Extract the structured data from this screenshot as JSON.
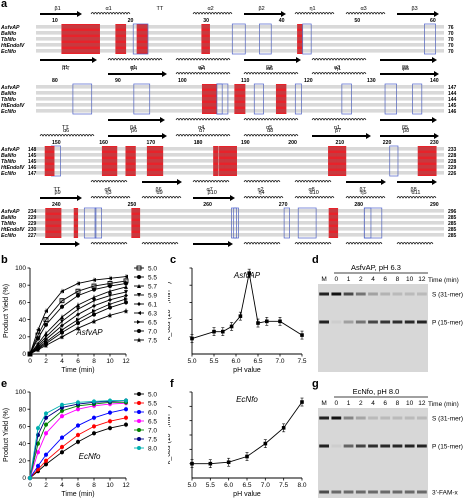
{
  "panel_labels": [
    "a",
    "b",
    "c",
    "d",
    "e",
    "f",
    "g"
  ],
  "alignment": {
    "species": [
      "AsfvAP",
      "BaNfo",
      "TbNfo",
      "HtEndoIV",
      "EcNfo"
    ],
    "blocks": [
      {
        "top_ss": [
          "β1",
          "α1",
          "TT",
          "α2",
          "β2",
          "η1",
          "α3",
          "β3"
        ],
        "positions": [
          "10",
          "20",
          "30",
          "40",
          "50",
          "60"
        ],
        "end_numbers": [
          "76",
          "70",
          "70",
          "70",
          "70"
        ],
        "bottom_ss": [
          "β1",
          "α1",
          "α2",
          "β2",
          "α3",
          "β3"
        ]
      },
      {
        "top_ss": [
          "TT",
          "β4",
          "α4",
          "α5",
          "η1",
          "β5"
        ],
        "positions": [
          "80",
          "90",
          "100",
          "110",
          "120",
          "130",
          "140"
        ],
        "end_numbers": [
          "147",
          "144",
          "144",
          "145",
          "146"
        ],
        "bottom_ss": [
          "TT",
          "β4",
          "α4",
          "α5",
          "η1",
          "β5"
        ]
      },
      {
        "top_ss": [
          "α6",
          "β6",
          "α7",
          "α8",
          "β7",
          "β8"
        ],
        "positions": [
          "150",
          "160",
          "170",
          "180",
          "190",
          "200",
          "210",
          "220",
          "230"
        ],
        "start_numbers": [
          "148",
          "145",
          "145",
          "146",
          "147"
        ],
        "end_numbers": [
          "233",
          "228",
          "228",
          "229",
          "226"
        ],
        "bottom_ss": [
          "TT",
          "α6",
          "β6",
          "α7",
          "η2",
          "α8",
          "β7",
          "β8"
        ]
      },
      {
        "top_ss": [
          "β9",
          "η3",
          "α9",
          "β10",
          "η4",
          "α10",
          "η5",
          "α11"
        ],
        "positions": [
          "240",
          "250",
          "260",
          "270",
          "280",
          "290"
        ],
        "start_numbers": [
          "234",
          "229",
          "229",
          "230",
          "227"
        ],
        "end_numbers": [
          "296",
          "285",
          "285",
          "285",
          "285"
        ],
        "bottom_ss": [
          "β9",
          "η3",
          "α9",
          "β10",
          "η4",
          "α10",
          "η5",
          "α11"
        ]
      }
    ]
  },
  "panel_b": {
    "title": "AsfvAP",
    "chart_data": {
      "type": "scatter",
      "xlabel": "Time (min)",
      "ylabel": "Product Yield (%)",
      "xlim": [
        0,
        12
      ],
      "ylim": [
        0,
        100
      ],
      "xticks": [
        "0",
        "2",
        "4",
        "6",
        "8",
        "10",
        "12"
      ],
      "yticks": [
        "0",
        "20",
        "40",
        "60",
        "80",
        "100"
      ],
      "legend_position": "right",
      "series": [
        {
          "name": "5.0",
          "color": "#000000",
          "marker": "square",
          "values": [
            [
              0,
              0
            ],
            [
              1,
              22
            ],
            [
              2,
              40
            ],
            [
              4,
              62
            ],
            [
              6,
              73
            ],
            [
              8,
              79
            ],
            [
              10,
              82
            ],
            [
              12,
              85
            ]
          ]
        },
        {
          "name": "5.5",
          "color": "#000000",
          "marker": "circle",
          "values": [
            [
              0,
              0
            ],
            [
              1,
              18
            ],
            [
              2,
              34
            ],
            [
              4,
              55
            ],
            [
              6,
              68
            ],
            [
              8,
              75
            ],
            [
              10,
              79
            ],
            [
              12,
              82
            ]
          ]
        },
        {
          "name": "5.7",
          "color": "#000000",
          "marker": "triangle",
          "values": [
            [
              0,
              0
            ],
            [
              1,
              12
            ],
            [
              2,
              24
            ],
            [
              4,
              43
            ],
            [
              6,
              57
            ],
            [
              8,
              66
            ],
            [
              10,
              73
            ],
            [
              12,
              78
            ]
          ]
        },
        {
          "name": "5.9",
          "color": "#000000",
          "marker": "triangle-down",
          "values": [
            [
              0,
              0
            ],
            [
              1,
              10
            ],
            [
              2,
              20
            ],
            [
              4,
              38
            ],
            [
              6,
              52
            ],
            [
              8,
              62
            ],
            [
              10,
              68
            ],
            [
              12,
              72
            ]
          ]
        },
        {
          "name": "6.1",
          "color": "#000000",
          "marker": "diamond",
          "values": [
            [
              0,
              0
            ],
            [
              1,
              8
            ],
            [
              2,
              17
            ],
            [
              4,
              33
            ],
            [
              6,
              46
            ],
            [
              8,
              56
            ],
            [
              10,
              63
            ],
            [
              12,
              68
            ]
          ]
        },
        {
          "name": "6.3",
          "color": "#000000",
          "marker": "triangle-left",
          "values": [
            [
              0,
              0
            ],
            [
              1,
              28
            ],
            [
              2,
              50
            ],
            [
              4,
              73
            ],
            [
              6,
              82
            ],
            [
              8,
              86
            ],
            [
              10,
              88
            ],
            [
              12,
              90
            ]
          ]
        },
        {
          "name": "6.5",
          "color": "#000000",
          "marker": "triangle-right",
          "values": [
            [
              0,
              0
            ],
            [
              1,
              7
            ],
            [
              2,
              14
            ],
            [
              4,
              28
            ],
            [
              6,
              40
            ],
            [
              8,
              50
            ],
            [
              10,
              58
            ],
            [
              12,
              64
            ]
          ]
        },
        {
          "name": "7.0",
          "color": "#000000",
          "marker": "hexagon",
          "values": [
            [
              0,
              0
            ],
            [
              1,
              6
            ],
            [
              2,
              12
            ],
            [
              4,
              25
            ],
            [
              6,
              36
            ],
            [
              8,
              46
            ],
            [
              10,
              54
            ],
            [
              12,
              60
            ]
          ]
        },
        {
          "name": "7.5",
          "color": "#000000",
          "marker": "star",
          "values": [
            [
              0,
              0
            ],
            [
              1,
              5
            ],
            [
              2,
              10
            ],
            [
              4,
              20
            ],
            [
              6,
              30
            ],
            [
              8,
              38
            ],
            [
              10,
              45
            ],
            [
              12,
              50
            ]
          ]
        }
      ]
    }
  },
  "panel_c": {
    "title": "AsfvAP",
    "chart_data": {
      "type": "line",
      "xlabel": "pH value",
      "ylabel": "k_obs (10⁻³,min⁻¹)",
      "xlim": [
        5.0,
        7.5
      ],
      "ylim": [
        0,
        0.5
      ],
      "xticks": [
        "5.0",
        "5.5",
        "6.0",
        "6.5",
        "7.0",
        "7.5"
      ],
      "x": [
        5.0,
        5.5,
        5.7,
        5.9,
        6.1,
        6.3,
        6.5,
        6.7,
        7.0,
        7.5
      ],
      "y": [
        0.09,
        0.13,
        0.13,
        0.16,
        0.22,
        0.47,
        0.18,
        0.19,
        0.19,
        0.11
      ]
    }
  },
  "panel_d": {
    "title": "AsfvAP, pH 6.3",
    "lanes": [
      "M",
      "0",
      "1",
      "2",
      "4",
      "6",
      "8",
      "10",
      "12"
    ],
    "time_label": "Time (min)",
    "band_labels": [
      "S (31-mer)",
      "P (15-mer)"
    ],
    "product_fraction": [
      0,
      0.28,
      0.5,
      0.73,
      0.82,
      0.86,
      0.88,
      0.9
    ]
  },
  "panel_e": {
    "title": "EcNfo",
    "chart_data": {
      "type": "scatter",
      "xlabel": "Time (min)",
      "ylabel": "Product Yield (%)",
      "xlim": [
        0,
        12
      ],
      "ylim": [
        0,
        100
      ],
      "xticks": [
        "0",
        "2",
        "4",
        "6",
        "8",
        "10",
        "12"
      ],
      "yticks": [
        "0",
        "20",
        "40",
        "60",
        "80",
        "100"
      ],
      "legend_position": "right",
      "series": [
        {
          "name": "5.0",
          "color": "#000000",
          "values": [
            [
              0,
              0
            ],
            [
              1,
              8
            ],
            [
              2,
              16
            ],
            [
              4,
              30
            ],
            [
              6,
              42
            ],
            [
              8,
              52
            ],
            [
              10,
              58
            ],
            [
              12,
              62
            ]
          ]
        },
        {
          "name": "5.5",
          "color": "#ff0000",
          "values": [
            [
              0,
              0
            ],
            [
              1,
              10
            ],
            [
              2,
              20
            ],
            [
              4,
              36
            ],
            [
              6,
              50
            ],
            [
              8,
              60
            ],
            [
              10,
              66
            ],
            [
              12,
              70
            ]
          ]
        },
        {
          "name": "6.0",
          "color": "#0000ff",
          "values": [
            [
              0,
              0
            ],
            [
              1,
              14
            ],
            [
              2,
              27
            ],
            [
              4,
              47
            ],
            [
              6,
              61
            ],
            [
              8,
              70
            ],
            [
              10,
              76
            ],
            [
              12,
              80
            ]
          ]
        },
        {
          "name": "6.5",
          "color": "#ff00ff",
          "values": [
            [
              0,
              0
            ],
            [
              1,
              30
            ],
            [
              2,
              52
            ],
            [
              4,
              72
            ],
            [
              6,
              80
            ],
            [
              8,
              84
            ],
            [
              10,
              86
            ],
            [
              12,
              87
            ]
          ]
        },
        {
          "name": "7.0",
          "color": "#008000",
          "values": [
            [
              0,
              0
            ],
            [
              1,
              40
            ],
            [
              2,
              62
            ],
            [
              4,
              78
            ],
            [
              6,
              84
            ],
            [
              8,
              86
            ],
            [
              10,
              88
            ],
            [
              12,
              88
            ]
          ]
        },
        {
          "name": "7.5",
          "color": "#000080",
          "values": [
            [
              0,
              0
            ],
            [
              1,
              50
            ],
            [
              2,
              70
            ],
            [
              4,
              82
            ],
            [
              6,
              86
            ],
            [
              8,
              88
            ],
            [
              10,
              89
            ],
            [
              12,
              90
            ]
          ]
        },
        {
          "name": "8.0",
          "color": "#00b0b0",
          "values": [
            [
              0,
              0
            ],
            [
              1,
              58
            ],
            [
              2,
              75
            ],
            [
              4,
              85
            ],
            [
              6,
              88
            ],
            [
              8,
              89
            ],
            [
              10,
              90
            ],
            [
              12,
              90
            ]
          ]
        }
      ]
    }
  },
  "panel_f": {
    "title": "EcNfo",
    "chart_data": {
      "type": "line",
      "xlabel": "pH value",
      "ylabel": "k_obs (10⁻³,min⁻¹)",
      "xlim": [
        5.0,
        8.0
      ],
      "ylim": [
        0.1,
        0.7
      ],
      "xticks": [
        "5.0",
        "5.5",
        "6.0",
        "6.5",
        "7.0",
        "7.5",
        "8.0"
      ],
      "x": [
        5.0,
        5.5,
        6.0,
        6.5,
        7.0,
        7.5,
        8.0
      ],
      "y": [
        0.2,
        0.2,
        0.21,
        0.25,
        0.34,
        0.45,
        0.63
      ]
    }
  },
  "panel_g": {
    "title": "EcNfo, pH 8.0",
    "lanes": [
      "M",
      "0",
      "1",
      "2",
      "4",
      "6",
      "8",
      "10",
      "12"
    ],
    "time_label": "Time (min)",
    "band_labels": [
      "S (31-mer)",
      "P (15-mer)",
      "3'-FAM-x"
    ],
    "product_fraction": [
      0,
      0.58,
      0.75,
      0.85,
      0.88,
      0.89,
      0.9,
      0.9
    ]
  }
}
